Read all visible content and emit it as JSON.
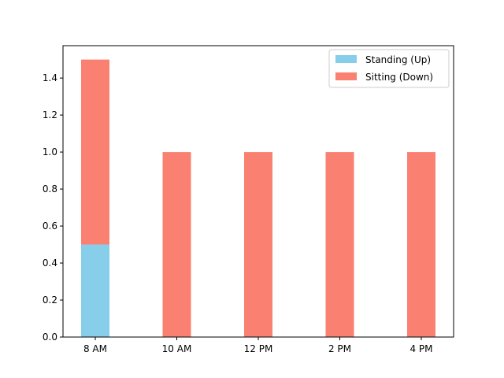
{
  "chart_data": {
    "type": "bar",
    "stacked": true,
    "categories": [
      "8 AM",
      "10 AM",
      "12 PM",
      "2 PM",
      "4 PM"
    ],
    "series": [
      {
        "name": "Standing (Up)",
        "values": [
          0.5,
          0,
          0,
          0,
          0
        ],
        "color": "#87ceeb"
      },
      {
        "name": "Sitting (Down)",
        "values": [
          1.0,
          1.0,
          1.0,
          1.0,
          1.0
        ],
        "color": "#fa8072"
      }
    ],
    "title": "",
    "xlabel": "",
    "ylabel": "",
    "ylim": [
      0,
      1.575
    ],
    "yticks": [
      0.0,
      0.2,
      0.4,
      0.6,
      0.8,
      1.0,
      1.2,
      1.4
    ],
    "ytick_labels": [
      "0.0",
      "0.2",
      "0.4",
      "0.6",
      "0.8",
      "1.0",
      "1.2",
      "1.4"
    ],
    "grid": false,
    "legend_position": "top-right"
  }
}
